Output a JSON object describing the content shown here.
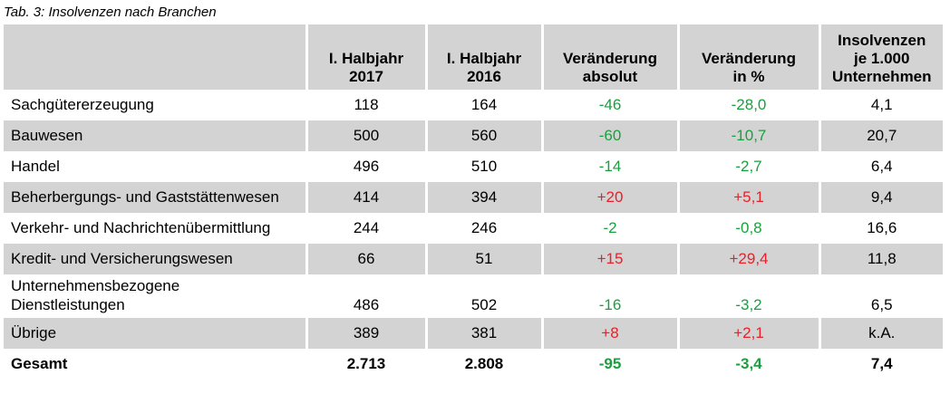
{
  "caption": "Tab. 3: Insolvenzen nach Branchen",
  "colors": {
    "decrease": "#1a9f3e",
    "increase": "#e8202a",
    "shade": "#d3d3d3"
  },
  "header": {
    "branch": "",
    "h2017": [
      "I. Halbjahr",
      "2017"
    ],
    "h2016": [
      "I. Halbjahr",
      "2016"
    ],
    "abs": [
      "Veränderung",
      "absolut"
    ],
    "pct": [
      "Veränderung",
      "in %"
    ],
    "per1000": [
      "Insolvenzen",
      "je 1.000",
      "Unternehmen"
    ]
  },
  "rows": [
    {
      "branch": [
        "Sachgütererzeugung"
      ],
      "v2017": "118",
      "v2016": "164",
      "abs": "-46",
      "pct": "-28,0",
      "per1000": "4,1",
      "trend": "neg"
    },
    {
      "branch": [
        "Bauwesen"
      ],
      "v2017": "500",
      "v2016": "560",
      "abs": "-60",
      "pct": "-10,7",
      "per1000": "20,7",
      "trend": "neg"
    },
    {
      "branch": [
        "Handel"
      ],
      "v2017": "496",
      "v2016": "510",
      "abs": "-14",
      "pct": "-2,7",
      "per1000": "6,4",
      "trend": "neg"
    },
    {
      "branch": [
        "Beherbergungs- und Gaststättenwesen"
      ],
      "v2017": "414",
      "v2016": "394",
      "abs": "+20",
      "pct": "+5,1",
      "per1000": "9,4",
      "trend": "pos"
    },
    {
      "branch": [
        "Verkehr- und Nachrichtenübermittlung"
      ],
      "v2017": "244",
      "v2016": "246",
      "abs": "-2",
      "pct": "-0,8",
      "per1000": "16,6",
      "trend": "neg"
    },
    {
      "branch": [
        "Kredit- und Versicherungswesen"
      ],
      "v2017": "66",
      "v2016": "51",
      "abs": "+15",
      "pct": "+29,4",
      "per1000": "11,8",
      "trend": "pos"
    },
    {
      "branch": [
        "Unternehmensbezogene",
        "Dienstleistungen"
      ],
      "v2017": "486",
      "v2016": "502",
      "abs": "-16",
      "pct": "-3,2",
      "per1000": "6,5",
      "trend": "neg"
    },
    {
      "branch": [
        "Übrige"
      ],
      "v2017": "389",
      "v2016": "381",
      "abs": "+8",
      "pct": "+2,1",
      "per1000": "k.A.",
      "trend": "pos"
    }
  ],
  "total": {
    "label": "Gesamt",
    "v2017": "2.713",
    "v2016": "2.808",
    "abs": "-95",
    "pct": "-3,4",
    "per1000": "7,4",
    "trend": "neg"
  }
}
